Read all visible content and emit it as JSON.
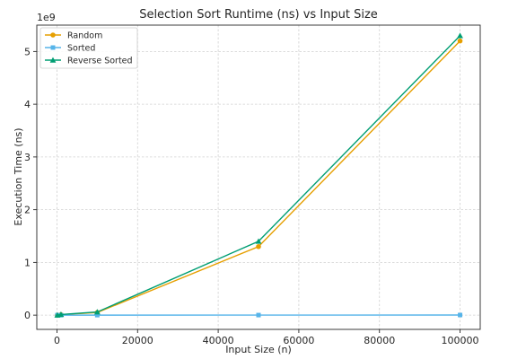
{
  "chart_data": {
    "type": "line",
    "title": "Selection Sort Runtime (ns) vs Input Size",
    "xlabel": "Input Size (n)",
    "ylabel": "Execution Time (ns)",
    "y_multiplier_label": "1e9",
    "xlim": [
      -5000,
      105000
    ],
    "ylim": [
      -0.27,
      5.5
    ],
    "x_ticks": [
      0,
      20000,
      40000,
      60000,
      80000,
      100000
    ],
    "x_tick_labels": [
      "0",
      "20000",
      "40000",
      "60000",
      "80000",
      "100000"
    ],
    "y_ticks": [
      0,
      1,
      2,
      3,
      4,
      5
    ],
    "y_tick_labels": [
      "0",
      "1",
      "2",
      "3",
      "4",
      "5"
    ],
    "grid": true,
    "legend_position": "top-left",
    "x": [
      100,
      1000,
      10000,
      50000,
      100000
    ],
    "series": [
      {
        "name": "Random",
        "color": "#E69F00",
        "marker": "circle",
        "values": [
          0.0001,
          0.01,
          0.05,
          1.3,
          5.2
        ]
      },
      {
        "name": "Sorted",
        "color": "#56B4E9",
        "marker": "square",
        "values": [
          5e-05,
          0.0001,
          0.0003,
          0.0012,
          0.0025
        ]
      },
      {
        "name": "Reverse Sorted",
        "color": "#009E73",
        "marker": "triangle",
        "values": [
          0.0001,
          0.012,
          0.06,
          1.4,
          5.3
        ]
      }
    ]
  }
}
